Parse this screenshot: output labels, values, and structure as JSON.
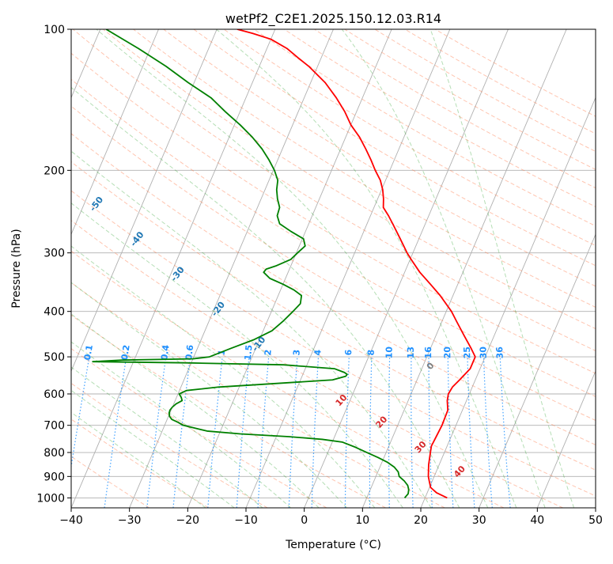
{
  "chart_data": {
    "type": "line",
    "title": "wetPf2_C2E1.2025.150.12.03.R14",
    "xlabel": "Temperature (°C)",
    "ylabel": "Pressure (hPa)",
    "xlim": [
      -40,
      50
    ],
    "ylim": [
      1050,
      100
    ],
    "y_scale": "log",
    "grid": true,
    "x_ticks": [
      "−40",
      "−30",
      "−20",
      "−10",
      "0",
      "10",
      "20",
      "30",
      "40",
      "50"
    ],
    "x_tick_values": [
      -40,
      -30,
      -20,
      -10,
      0,
      10,
      20,
      30,
      40,
      50
    ],
    "y_ticks": [
      "100",
      "200",
      "300",
      "400",
      "500",
      "600",
      "700",
      "800",
      "900",
      "1000"
    ],
    "y_tick_values": [
      100,
      200,
      300,
      400,
      500,
      600,
      700,
      800,
      900,
      1000
    ],
    "series": [
      {
        "role": "temperature",
        "color": "#ff0000",
        "points": [
          [
            1000,
            23.8
          ],
          [
            975,
            21.6
          ],
          [
            950,
            20.2
          ],
          [
            925,
            19.6
          ],
          [
            900,
            19.0
          ],
          [
            850,
            18.2
          ],
          [
            800,
            17.6
          ],
          [
            775,
            17.3
          ],
          [
            750,
            17.4
          ],
          [
            700,
            17.6
          ],
          [
            650,
            17.5
          ],
          [
            620,
            16.7
          ],
          [
            600,
            16.4
          ],
          [
            580,
            16.6
          ],
          [
            560,
            17.3
          ],
          [
            530,
            18.3
          ],
          [
            500,
            18.3
          ],
          [
            480,
            17.0
          ],
          [
            450,
            14.8
          ],
          [
            420,
            12.5
          ],
          [
            400,
            10.9
          ],
          [
            370,
            7.8
          ],
          [
            350,
            5.3
          ],
          [
            330,
            2.6
          ],
          [
            310,
            0.2
          ],
          [
            300,
            -1.0
          ],
          [
            280,
            -3.2
          ],
          [
            260,
            -5.6
          ],
          [
            250,
            -6.9
          ],
          [
            240,
            -8.4
          ],
          [
            230,
            -9.0
          ],
          [
            220,
            -9.8
          ],
          [
            210,
            -10.9
          ],
          [
            200,
            -12.5
          ],
          [
            190,
            -14.0
          ],
          [
            180,
            -15.7
          ],
          [
            170,
            -17.6
          ],
          [
            160,
            -20.0
          ],
          [
            150,
            -22.0
          ],
          [
            140,
            -24.5
          ],
          [
            130,
            -27.5
          ],
          [
            120,
            -31.5
          ],
          [
            115,
            -34.0
          ],
          [
            110,
            -36.5
          ],
          [
            105,
            -40.0
          ],
          [
            102,
            -43.6
          ],
          [
            100,
            -46.5
          ]
        ]
      },
      {
        "role": "dewpoint",
        "color": "#008000",
        "points": [
          [
            1000,
            16.5
          ],
          [
            980,
            16.8
          ],
          [
            960,
            16.6
          ],
          [
            940,
            16.1
          ],
          [
            920,
            15.2
          ],
          [
            900,
            14.0
          ],
          [
            880,
            13.5
          ],
          [
            860,
            12.5
          ],
          [
            840,
            11.0
          ],
          [
            820,
            9.0
          ],
          [
            800,
            6.7
          ],
          [
            780,
            4.4
          ],
          [
            760,
            1.7
          ],
          [
            750,
            -1.9
          ],
          [
            740,
            -7.9
          ],
          [
            730,
            -16.4
          ],
          [
            720,
            -22.3
          ],
          [
            710,
            -24.5
          ],
          [
            700,
            -26.8
          ],
          [
            690,
            -27.9
          ],
          [
            680,
            -29.2
          ],
          [
            670,
            -29.8
          ],
          [
            660,
            -30.1
          ],
          [
            650,
            -30.2
          ],
          [
            640,
            -30.0
          ],
          [
            630,
            -29.6
          ],
          [
            620,
            -28.8
          ],
          [
            610,
            -29.2
          ],
          [
            600,
            -29.8
          ],
          [
            590,
            -28.8
          ],
          [
            580,
            -23.5
          ],
          [
            570,
            -14.0
          ],
          [
            560,
            -4.5
          ],
          [
            550,
            -2.5
          ],
          [
            545,
            -2.4
          ],
          [
            540,
            -3.0
          ],
          [
            530,
            -5.0
          ],
          [
            520,
            -14.0
          ],
          [
            515,
            -31.0
          ],
          [
            512,
            -47.0
          ],
          [
            508,
            -42.0
          ],
          [
            505,
            -30.0
          ],
          [
            500,
            -27.3
          ],
          [
            480,
            -24.3
          ],
          [
            460,
            -21.0
          ],
          [
            440,
            -18.5
          ],
          [
            420,
            -17.3
          ],
          [
            400,
            -16.3
          ],
          [
            385,
            -15.6
          ],
          [
            370,
            -16.0
          ],
          [
            360,
            -17.7
          ],
          [
            350,
            -20.0
          ],
          [
            340,
            -22.7
          ],
          [
            330,
            -24.2
          ],
          [
            325,
            -24.0
          ],
          [
            320,
            -22.6
          ],
          [
            310,
            -20.5
          ],
          [
            300,
            -19.8
          ],
          [
            290,
            -19.0
          ],
          [
            280,
            -19.8
          ],
          [
            270,
            -22.5
          ],
          [
            260,
            -25.0
          ],
          [
            250,
            -26.0
          ],
          [
            240,
            -26.2
          ],
          [
            230,
            -27.2
          ],
          [
            220,
            -28.0
          ],
          [
            210,
            -28.5
          ],
          [
            200,
            -29.8
          ],
          [
            190,
            -31.5
          ],
          [
            180,
            -33.5
          ],
          [
            170,
            -36.0
          ],
          [
            160,
            -39.0
          ],
          [
            150,
            -42.5
          ],
          [
            140,
            -46.0
          ],
          [
            130,
            -51.0
          ],
          [
            120,
            -56.0
          ],
          [
            110,
            -62.0
          ],
          [
            100,
            -69.0
          ]
        ]
      }
    ],
    "dry_adiabats_C": [
      -100,
      -90,
      -80,
      -70,
      -60,
      -50,
      -40,
      -30,
      -20,
      -10
    ],
    "mixing_ratio_labels": [
      "0.1",
      "0.2",
      "0.4",
      "0.6",
      "1",
      "1.5",
      "2",
      "3",
      "4",
      "6",
      "8",
      "10",
      "13",
      "16",
      "20",
      "25",
      "30",
      "36"
    ],
    "mixing_ratio_values": [
      0.1,
      0.2,
      0.4,
      0.6,
      1,
      1.5,
      2,
      3,
      4,
      6,
      8,
      10,
      13,
      16,
      20,
      25,
      30,
      36
    ],
    "moist_adiabat_labels": [
      "0",
      "10",
      "20",
      "30",
      "40"
    ],
    "moist_adiabat_values": [
      0,
      10,
      20,
      30,
      40
    ],
    "colors": {
      "isotherm": "#b0b0b0",
      "pressure_grid": "#b0b0b0",
      "dry_adiabat": "#ff7f50",
      "moist_adiabat": "#2ca02c",
      "mixing_ratio": "#1e90ff",
      "dry_label": "#1f77b4",
      "mixing_label": "#1e90ff",
      "moist_label": "#d62728",
      "zero_label": "#808080",
      "temperature": "#ff0000",
      "dewpoint": "#008000"
    }
  }
}
